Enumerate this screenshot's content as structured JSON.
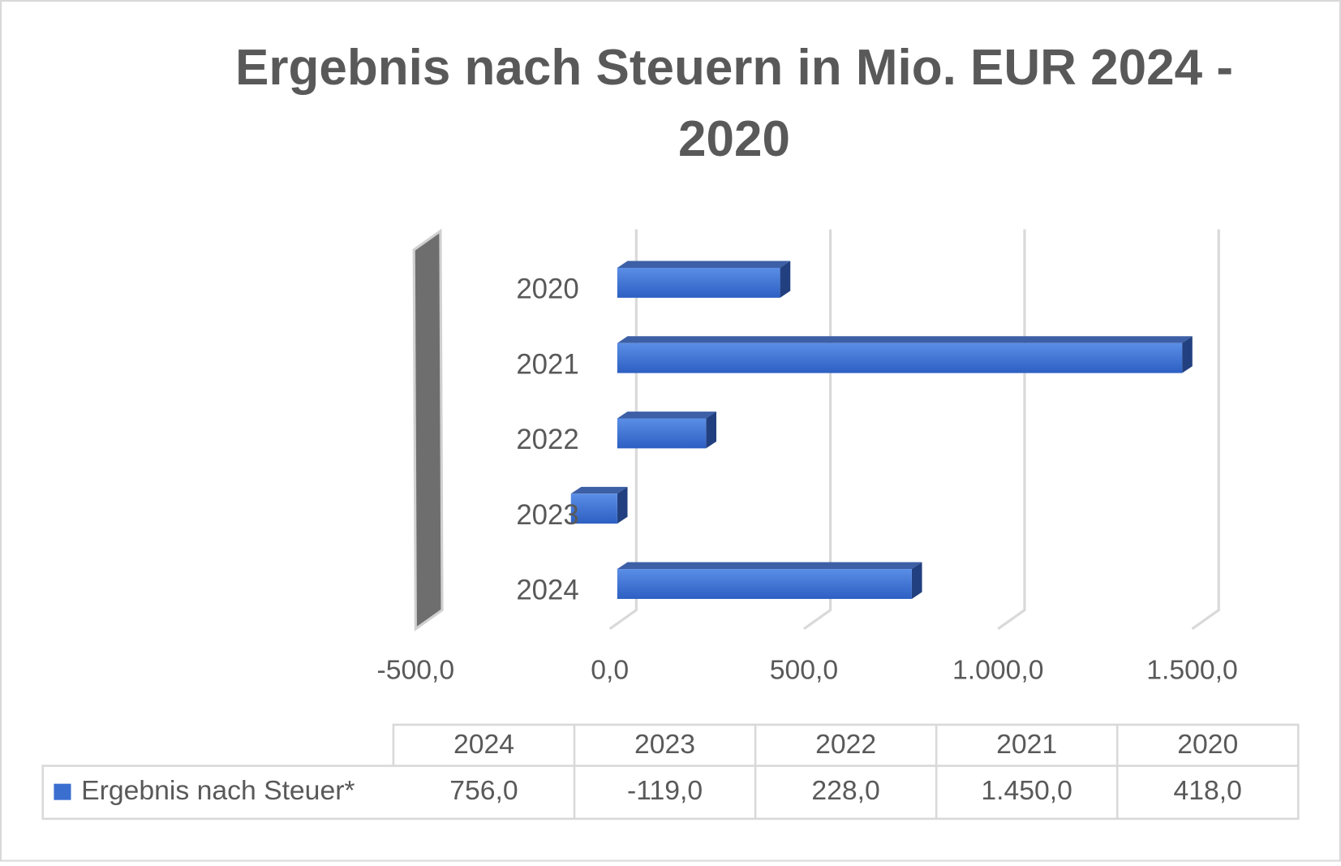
{
  "chart_data": {
    "type": "bar3d",
    "title": "Ergebnis nach Steuern in Mio. EUR 2024 - 2020",
    "categories": [
      "2024",
      "2023",
      "2022",
      "2021",
      "2020"
    ],
    "series": [
      {
        "name": "Ergebnis nach Steuer*",
        "color": "#3a6fd0",
        "values": [
          756,
          -119,
          228,
          1450,
          418
        ],
        "value_labels": [
          "756,0",
          "-119,0",
          "228,0",
          "1.450,0",
          "418,0"
        ]
      }
    ],
    "xlim": [
      -500,
      1500
    ],
    "xticks": [
      {
        "value": -500,
        "label": "-500,0"
      },
      {
        "value": 0,
        "label": "0,0"
      },
      {
        "value": 500,
        "label": "500,0"
      },
      {
        "value": 1000,
        "label": "1.000,0"
      },
      {
        "value": 1500,
        "label": "1.500,0"
      }
    ],
    "grid": true,
    "data_table": true
  }
}
